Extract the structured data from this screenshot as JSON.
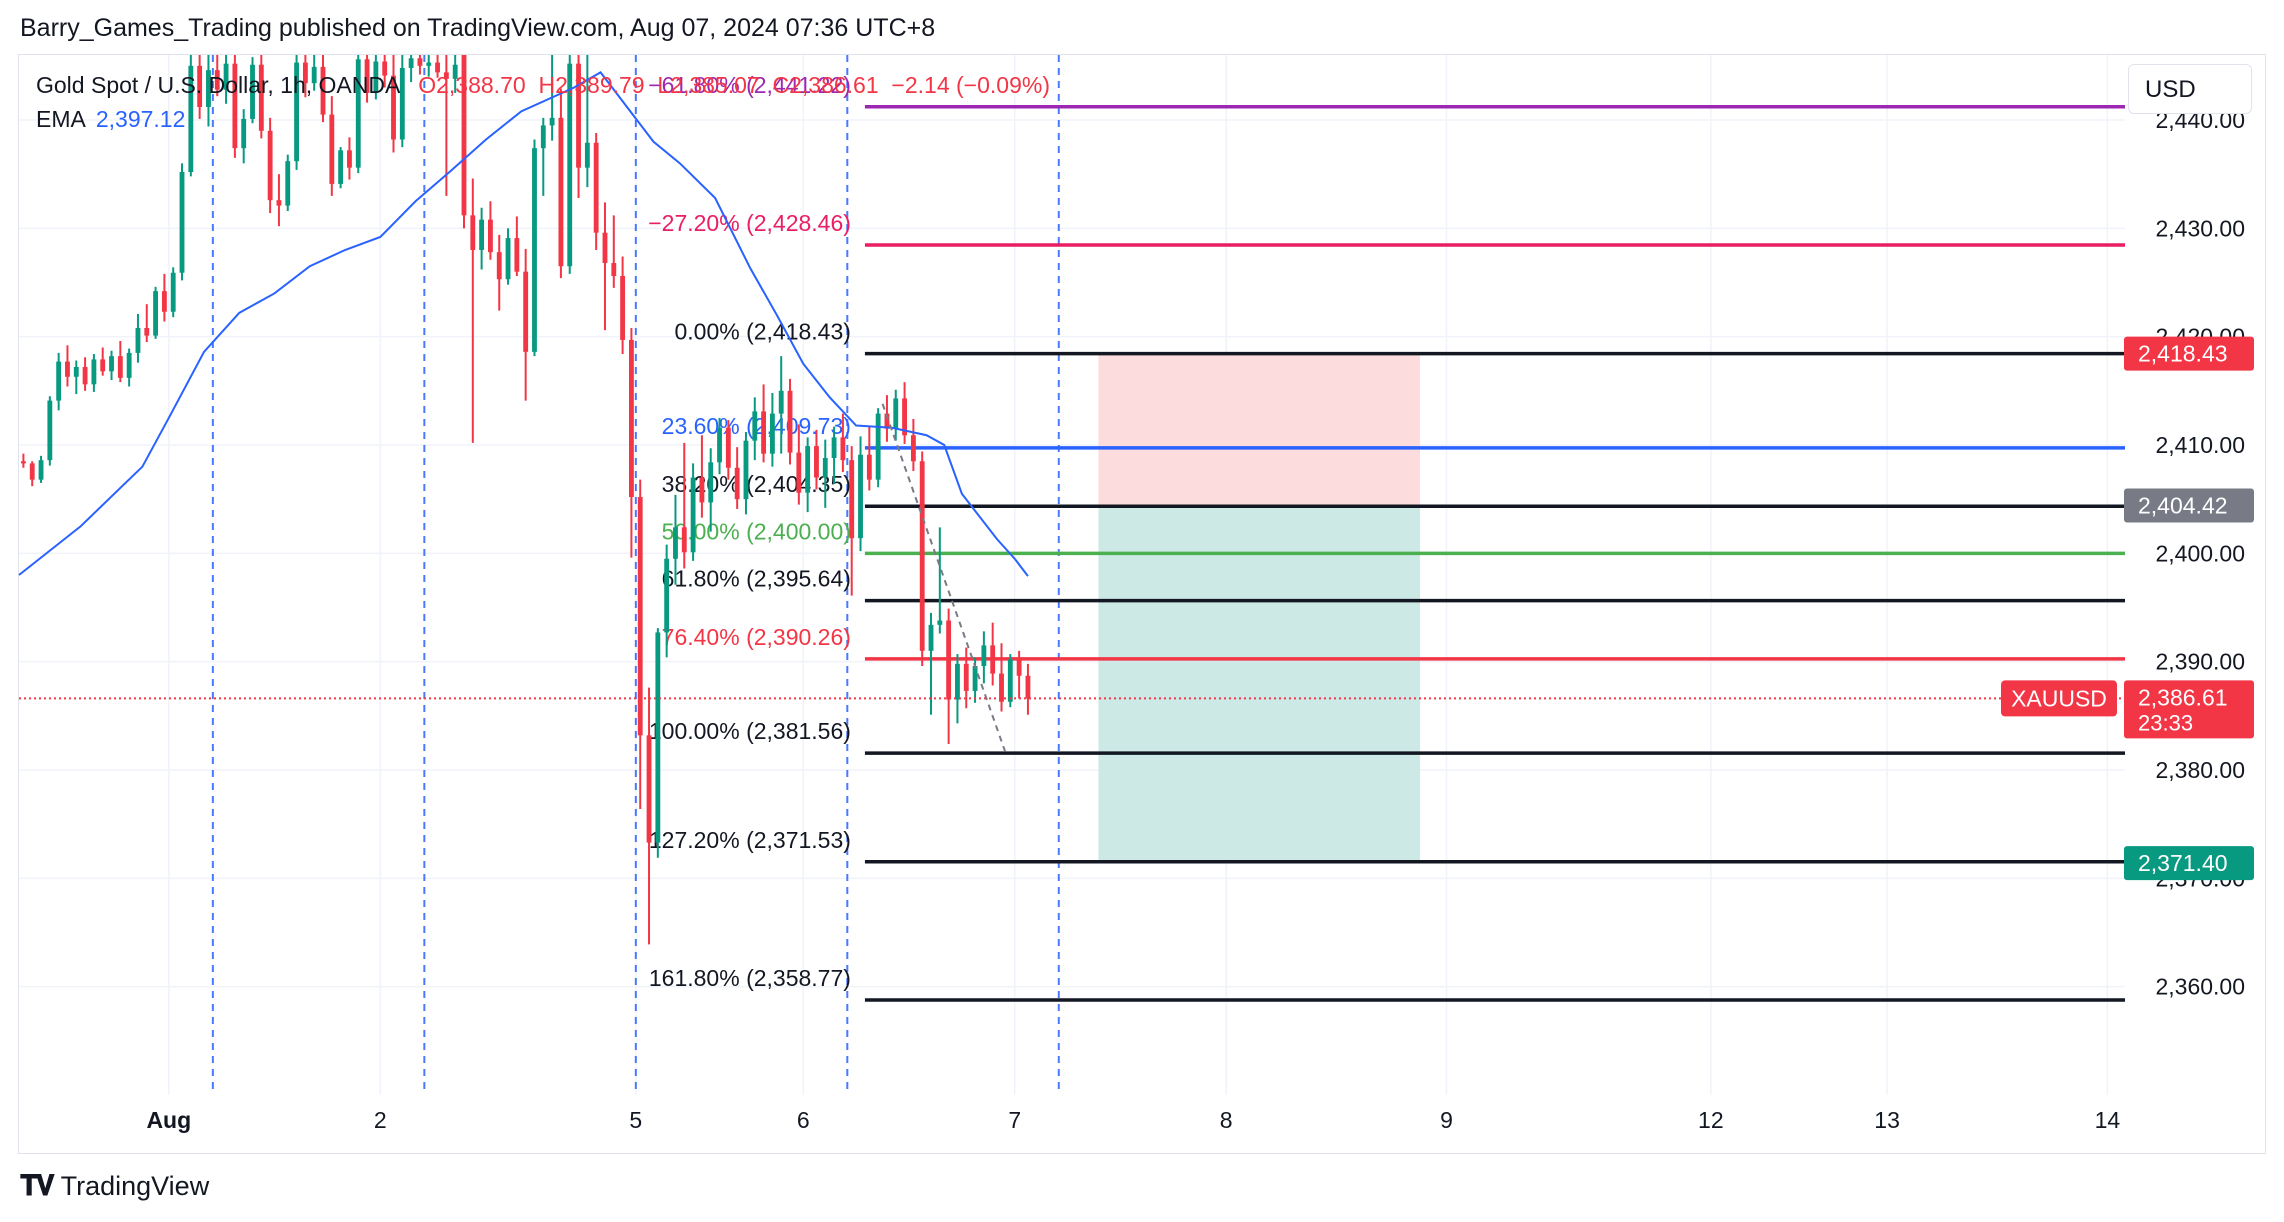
{
  "header": {
    "publisher_line": "Barry_Games_Trading published on TradingView.com, Aug 07, 2024 07:36 UTC+8"
  },
  "legend": {
    "symbol": "Gold Spot / U.S. Dollar, 1h, OANDA",
    "open": "2,388.70",
    "high": "2,389.79",
    "low": "2,385.07",
    "close": "2,386.61",
    "change": "−2.14 (−0.09%)",
    "ema_label": "EMA",
    "ema_value": "2,397.12"
  },
  "toolbar": {
    "currency": "USD"
  },
  "footer": {
    "brand": "TradingView"
  },
  "colors": {
    "up": "#089981",
    "down": "#f23645",
    "ema": "#2962ff",
    "grid": "#f0f3fa"
  },
  "chart_data": {
    "type": "candlestick",
    "ylim": [
      2350,
      2446
    ],
    "y_ticks": [
      "2,440.00",
      "2,430.00",
      "2,420.00",
      "2,410.00",
      "2,400.00",
      "2,390.00",
      "2,380.00",
      "2,370.00",
      "2,360.00"
    ],
    "y_tick_values": [
      2440,
      2430,
      2420,
      2410,
      2400,
      2390,
      2380,
      2370,
      2360
    ],
    "x_tick_labels": [
      {
        "label": "Aug",
        "x": 0
      },
      {
        "label": "2",
        "x": 24
      },
      {
        "label": "5",
        "x": 53
      },
      {
        "label": "6",
        "x": 72
      },
      {
        "label": "7",
        "x": 96
      },
      {
        "label": "8",
        "x": 120
      },
      {
        "label": "9",
        "x": 145
      },
      {
        "label": "12",
        "x": 175
      },
      {
        "label": "13",
        "x": 195
      },
      {
        "label": "14",
        "x": 220
      }
    ],
    "xlim": [
      -17,
      222
    ],
    "session_lines_x": [
      5,
      29,
      53,
      77,
      101
    ],
    "candles": [
      [
        2408.5,
        2409.2,
        2407.9,
        2408.3
      ],
      [
        2408.3,
        2408.5,
        2406.2,
        2406.8
      ],
      [
        2406.8,
        2409.0,
        2406.5,
        2408.6
      ],
      [
        2408.6,
        2414.5,
        2408.1,
        2414.1
      ],
      [
        2414.1,
        2418.5,
        2413.2,
        2417.7
      ],
      [
        2417.7,
        2419.2,
        2415.4,
        2416.3
      ],
      [
        2416.3,
        2417.8,
        2414.7,
        2417.2
      ],
      [
        2417.2,
        2418.1,
        2415.0,
        2415.6
      ],
      [
        2415.6,
        2418.4,
        2414.9,
        2417.9
      ],
      [
        2417.9,
        2419.0,
        2416.4,
        2416.8
      ],
      [
        2416.8,
        2418.7,
        2416.0,
        2418.2
      ],
      [
        2418.2,
        2419.6,
        2415.8,
        2416.2
      ],
      [
        2416.2,
        2418.9,
        2415.4,
        2418.5
      ],
      [
        2418.5,
        2422.1,
        2417.6,
        2420.8
      ],
      [
        2420.8,
        2423.0,
        2419.5,
        2420.1
      ],
      [
        2420.1,
        2424.6,
        2419.8,
        2424.2
      ],
      [
        2424.2,
        2425.8,
        2421.4,
        2422.3
      ],
      [
        2422.3,
        2426.4,
        2421.8,
        2425.9
      ],
      [
        2425.9,
        2436.0,
        2425.2,
        2435.2
      ],
      [
        2435.2,
        2446.0,
        2434.8,
        2445.0
      ],
      [
        2445.0,
        2446.0,
        2440.1,
        2441.2
      ],
      [
        2441.2,
        2446.0,
        2439.4,
        2444.6
      ],
      [
        2444.6,
        2446.0,
        2442.2,
        2442.8
      ],
      [
        2442.8,
        2446.0,
        2441.5,
        2445.2
      ],
      [
        2445.2,
        2446.0,
        2436.5,
        2437.4
      ],
      [
        2437.4,
        2441.0,
        2436.0,
        2440.1
      ],
      [
        2440.1,
        2445.8,
        2439.7,
        2445.1
      ],
      [
        2445.1,
        2446.0,
        2438.3,
        2439.0
      ],
      [
        2439.0,
        2440.2,
        2431.4,
        2432.6
      ],
      [
        2432.6,
        2435.0,
        2430.2,
        2432.1
      ],
      [
        2432.1,
        2436.8,
        2431.6,
        2436.2
      ],
      [
        2436.2,
        2446.0,
        2435.4,
        2445.3
      ],
      [
        2445.3,
        2446.0,
        2442.1,
        2443.4
      ],
      [
        2443.4,
        2446.0,
        2442.7,
        2444.9
      ],
      [
        2444.9,
        2446.0,
        2439.8,
        2440.5
      ],
      [
        2440.5,
        2442.2,
        2433.0,
        2434.1
      ],
      [
        2434.1,
        2437.5,
        2433.7,
        2437.2
      ],
      [
        2437.2,
        2438.4,
        2434.5,
        2435.6
      ],
      [
        2435.6,
        2446.0,
        2435.1,
        2445.6
      ],
      [
        2445.6,
        2446.0,
        2441.6,
        2442.5
      ],
      [
        2442.5,
        2446.0,
        2441.9,
        2445.4
      ],
      [
        2445.4,
        2446.0,
        2443.0,
        2444.1
      ],
      [
        2444.1,
        2446.0,
        2437.0,
        2438.2
      ],
      [
        2438.2,
        2446.0,
        2437.5,
        2444.8
      ],
      [
        2444.8,
        2446.0,
        2443.5,
        2445.7
      ],
      [
        2445.7,
        2446.0,
        2444.2,
        2445.0
      ],
      [
        2445.0,
        2446.0,
        2444.0,
        2445.3
      ],
      [
        2445.3,
        2446.0,
        2443.9,
        2444.4
      ],
      [
        2444.4,
        2446.0,
        2433.0,
        2443.8
      ],
      [
        2443.8,
        2446.0,
        2442.5,
        2445.1
      ],
      [
        2446.0,
        2446.0,
        2430.0,
        2431.2
      ],
      [
        2431.2,
        2434.6,
        2410.2,
        2428.0
      ],
      [
        2428.0,
        2431.9,
        2426.2,
        2430.8
      ],
      [
        2430.8,
        2432.5,
        2427.1,
        2427.8
      ],
      [
        2427.8,
        2429.4,
        2422.4,
        2425.3
      ],
      [
        2425.3,
        2430.0,
        2424.8,
        2429.1
      ],
      [
        2429.1,
        2431.1,
        2425.6,
        2426.0
      ],
      [
        2426.0,
        2428.1,
        2414.1,
        2418.6
      ],
      [
        2418.6,
        2438.2,
        2418.2,
        2437.4
      ],
      [
        2437.4,
        2440.2,
        2433.0,
        2439.5
      ],
      [
        2439.5,
        2446.0,
        2438.1,
        2440.2
      ],
      [
        2440.2,
        2442.9,
        2425.4,
        2426.5
      ],
      [
        2426.5,
        2446.0,
        2425.8,
        2445.2
      ],
      [
        2445.2,
        2446.0,
        2432.8,
        2435.6
      ],
      [
        2435.6,
        2446.0,
        2433.8,
        2437.9
      ],
      [
        2437.9,
        2438.8,
        2428.0,
        2429.6
      ],
      [
        2429.6,
        2432.4,
        2420.6,
        2426.8
      ],
      [
        2426.8,
        2431.2,
        2424.5,
        2425.6
      ],
      [
        2425.6,
        2427.4,
        2418.4,
        2419.7
      ],
      [
        2419.7,
        2420.8,
        2399.6,
        2405.2
      ],
      [
        2405.2,
        2406.8,
        2376.4,
        2383.2
      ],
      [
        2383.2,
        2387.6,
        2363.9,
        2373.3
      ],
      [
        2373.3,
        2393.1,
        2371.9,
        2392.7
      ],
      [
        2392.7,
        2400.8,
        2390.4,
        2399.5
      ],
      [
        2399.5,
        2405.4,
        2397.1,
        2402.4
      ],
      [
        2402.4,
        2410.2,
        2398.6,
        2400.1
      ],
      [
        2400.1,
        2408.3,
        2399.3,
        2407.0
      ],
      [
        2407.0,
        2410.9,
        2403.3,
        2404.7
      ],
      [
        2404.7,
        2409.7,
        2402.0,
        2408.4
      ],
      [
        2408.4,
        2412.5,
        2407.3,
        2411.6
      ],
      [
        2411.6,
        2412.3,
        2406.8,
        2407.9
      ],
      [
        2407.9,
        2409.8,
        2404.1,
        2405.0
      ],
      [
        2405.0,
        2411.2,
        2403.6,
        2410.4
      ],
      [
        2410.4,
        2414.4,
        2408.6,
        2413.1
      ],
      [
        2413.1,
        2415.6,
        2408.4,
        2409.2
      ],
      [
        2409.2,
        2414.8,
        2408.0,
        2412.9
      ],
      [
        2412.9,
        2418.2,
        2409.2,
        2415.0
      ],
      [
        2415.0,
        2416.1,
        2408.2,
        2409.3
      ],
      [
        2409.3,
        2411.9,
        2404.5,
        2405.6
      ],
      [
        2405.6,
        2410.7,
        2403.8,
        2409.9
      ],
      [
        2409.9,
        2411.4,
        2405.9,
        2407.0
      ],
      [
        2407.0,
        2410.5,
        2404.2,
        2408.8
      ],
      [
        2408.8,
        2411.7,
        2406.4,
        2410.7
      ],
      [
        2410.7,
        2412.9,
        2407.5,
        2408.6
      ],
      [
        2408.6,
        2409.9,
        2396.1,
        2401.4
      ],
      [
        2401.4,
        2410.8,
        2400.2,
        2409.1
      ],
      [
        2409.1,
        2411.8,
        2405.8,
        2406.8
      ],
      [
        2406.8,
        2413.4,
        2406.1,
        2412.9
      ],
      [
        2412.9,
        2414.6,
        2410.3,
        2411.5
      ],
      [
        2411.5,
        2415.1,
        2410.4,
        2414.3
      ],
      [
        2414.3,
        2415.8,
        2410.1,
        2410.9
      ],
      [
        2410.9,
        2412.4,
        2407.6,
        2408.5
      ],
      [
        2408.5,
        2409.4,
        2389.6,
        2391.0
      ],
      [
        2391.0,
        2394.5,
        2385.1,
        2393.4
      ],
      [
        2393.4,
        2402.4,
        2392.6,
        2393.8
      ],
      [
        2393.8,
        2394.9,
        2382.4,
        2386.5
      ],
      [
        2386.5,
        2390.7,
        2384.3,
        2389.8
      ],
      [
        2389.8,
        2391.3,
        2385.7,
        2387.3
      ],
      [
        2387.3,
        2390.4,
        2386.2,
        2389.6
      ],
      [
        2389.6,
        2392.8,
        2388.0,
        2391.5
      ],
      [
        2391.5,
        2393.6,
        2387.8,
        2388.9
      ],
      [
        2388.9,
        2391.7,
        2385.4,
        2386.3
      ],
      [
        2386.3,
        2390.7,
        2385.8,
        2390.2
      ],
      [
        2390.2,
        2391.0,
        2386.6,
        2388.7
      ],
      [
        2388.7,
        2389.8,
        2385.1,
        2386.6
      ]
    ],
    "ema": [
      [
        -17,
        2398.0
      ],
      [
        -10,
        2402.5
      ],
      [
        -3,
        2408.0
      ],
      [
        0,
        2412.5
      ],
      [
        4,
        2418.6
      ],
      [
        8,
        2422.2
      ],
      [
        12,
        2424.0
      ],
      [
        16,
        2426.5
      ],
      [
        20,
        2428.0
      ],
      [
        24,
        2429.2
      ],
      [
        28,
        2432.5
      ],
      [
        32,
        2435.3
      ],
      [
        36,
        2438.2
      ],
      [
        40,
        2440.8
      ],
      [
        46,
        2443.0
      ],
      [
        49,
        2444.4
      ],
      [
        55,
        2438.0
      ],
      [
        58,
        2436.0
      ],
      [
        62,
        2432.8
      ],
      [
        66,
        2426.3
      ],
      [
        69,
        2422.0
      ],
      [
        72,
        2417.5
      ],
      [
        75,
        2414.4
      ],
      [
        78,
        2411.8
      ],
      [
        82,
        2411.6
      ],
      [
        86,
        2410.9
      ],
      [
        88,
        2410.0
      ],
      [
        90,
        2405.5
      ],
      [
        94,
        2401.3
      ],
      [
        96,
        2399.5
      ],
      [
        97.5,
        2397.9
      ]
    ],
    "projection_line": [
      [
        81,
        2413.8
      ],
      [
        95,
        2381.5
      ]
    ],
    "fibonacci": {
      "x_start": 79,
      "x_end": 222,
      "levels": [
        {
          "label": "−61.80% (2,441.22)",
          "value": 2441.22,
          "color": "#9c27b0"
        },
        {
          "label": "−27.20% (2,428.46)",
          "value": 2428.46,
          "color": "#e91e63"
        },
        {
          "label": "0.00% (2,418.43)",
          "value": 2418.43,
          "color": "#131722"
        },
        {
          "label": "23.60% (2,409.73)",
          "value": 2409.73,
          "color": "#2962ff"
        },
        {
          "label": "38.20% (2,404.35)",
          "value": 2404.35,
          "color": "#131722"
        },
        {
          "label": "50.00% (2,400.00)",
          "value": 2400.0,
          "color": "#4caf50"
        },
        {
          "label": "61.80% (2,395.64)",
          "value": 2395.64,
          "color": "#131722"
        },
        {
          "label": "76.40% (2,390.26)",
          "value": 2390.26,
          "color": "#f23645"
        },
        {
          "label": "100.00% (2,381.56)",
          "value": 2381.56,
          "color": "#131722"
        },
        {
          "label": "127.20% (2,371.53)",
          "value": 2371.53,
          "color": "#131722"
        },
        {
          "label": "161.80% (2,358.77)",
          "value": 2358.77,
          "color": "#131722"
        }
      ]
    },
    "position": {
      "x_start": 105.5,
      "x_end": 142,
      "entry": 2404.42,
      "stop": 2418.43,
      "target": 2371.4,
      "stop_color": "#fcdcdc",
      "target_color": "#cde9e6"
    },
    "current_price": 2386.61,
    "price_labels": [
      {
        "text": "2,418.43",
        "value": 2418.43,
        "bg": "#f23645",
        "color": "#ffffff"
      },
      {
        "text": "2,404.42",
        "value": 2404.42,
        "bg": "#787b86",
        "color": "#ffffff"
      },
      {
        "text": "2,371.40",
        "value": 2371.4,
        "bg": "#089981",
        "color": "#ffffff"
      },
      {
        "text": "2,386.61",
        "sub": "23:33",
        "value": 2386.61,
        "bg": "#f23645",
        "color": "#ffffff"
      }
    ],
    "symbol_tag": "XAUUSD"
  }
}
